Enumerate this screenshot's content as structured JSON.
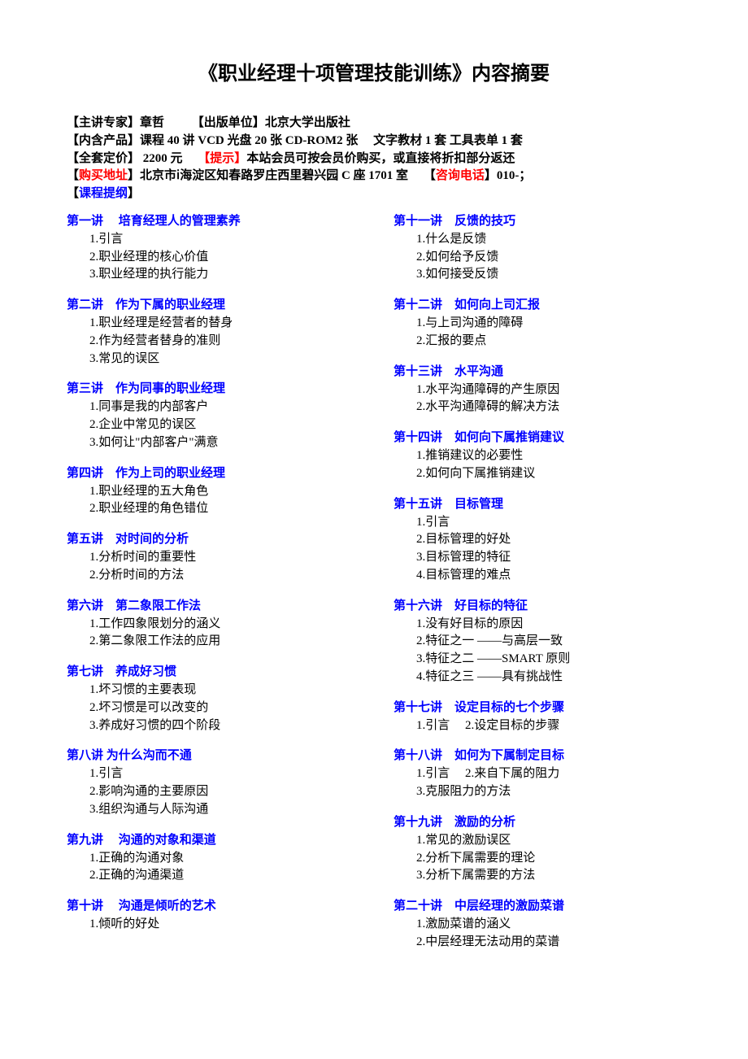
{
  "title": "《职业经理十项管理技能训练》内容摘要",
  "meta": {
    "line1_label1": "【主讲专家】",
    "line1_val1": "章哲",
    "line1_label2": "【出版单位】",
    "line1_val2": "北京大学出版社",
    "line2_label": "【内含产品】",
    "line2_val": "课程 40 讲  VCD 光盘 20 张  CD-ROM2 张　  文字教材 1 套  工具表单 1 套",
    "line3_label": "【全套定价】",
    "line3_val": "  2200 元",
    "line3_red": "【提示】",
    "line3_after": "本站会员可按会员价购买，或直接将折扣部分返还",
    "line4_blue1": "购买地址",
    "line4_val": "北京市ⅰ海淀区知春路罗庄西里碧兴园 C 座 1701 室",
    "line4_blue2": "咨询电话",
    "line4_after": "010-；",
    "line5": "课程提纲"
  },
  "left": [
    {
      "h": "第一讲　 培育经理人的管理素养",
      "items": [
        "1.引言",
        "2.职业经理的核心价值",
        "3.职业经理的执行能力"
      ]
    },
    {
      "h": "第二讲　作为下属的职业经理",
      "items": [
        "1.职业经理是经营者的替身",
        "2.作为经营者替身的准则",
        "3.常见的误区"
      ]
    },
    {
      "h": "第三讲　作为同事的职业经理",
      "items": [
        "1.同事是我的内部客户",
        "2.企业中常见的误区",
        "3.如何让\"内部客户\"满意"
      ]
    },
    {
      "h": "第四讲　作为上司的职业经理",
      "items": [
        "1.职业经理的五大角色",
        "2.职业经理的角色错位"
      ]
    },
    {
      "h": "第五讲　对时间的分析",
      "items": [
        "1.分析时间的重要性",
        "2.分析时间的方法"
      ]
    },
    {
      "h": "第六讲　第二象限工作法",
      "items": [
        "1.工作四象限划分的涵义",
        "2.第二象限工作法的应用"
      ]
    },
    {
      "h": "第七讲　养成好习惯",
      "items": [
        "1.坏习惯的主要表现",
        "2.坏习惯是可以改变的",
        "3.养成好习惯的四个阶段"
      ]
    },
    {
      "h": "第八讲  为什么沟而不通",
      "items": [
        "1.引言",
        "2.影响沟通的主要原因",
        "3.组织沟通与人际沟通"
      ]
    },
    {
      "h": "第九讲　  沟通的对象和渠道",
      "items": [
        "1.正确的沟通对象",
        "2.正确的沟通渠道"
      ]
    },
    {
      "h": "第十讲　  沟通是倾听的艺术",
      "items": [
        "1.倾听的好处"
      ]
    }
  ],
  "right": [
    {
      "h": "第十一讲　反馈的技巧",
      "items": [
        "1.什么是反馈",
        "2.如何给予反馈",
        "3.如何接受反馈"
      ]
    },
    {
      "h": "第十二讲　如何向上司汇报",
      "items": [
        "1.与上司沟通的障碍",
        "2.汇报的要点"
      ]
    },
    {
      "h": "第十三讲　水平沟通",
      "items": [
        "1.水平沟通障碍的产生原因",
        "2.水平沟通障碍的解决方法"
      ]
    },
    {
      "h": "第十四讲　如何向下属推销建议",
      "items": [
        "1.推销建议的必要性",
        "2.如何向下属推销建议"
      ]
    },
    {
      "h": "第十五讲　目标管理",
      "items": [
        "1.引言",
        "2.目标管理的好处",
        "3.目标管理的特征",
        "4.目标管理的难点"
      ]
    },
    {
      "h": "第十六讲　好目标的特征",
      "items": [
        "1.没有好目标的原因",
        "2.特征之一  ——与高层一致",
        "3.特征之二  ——SMART  原则",
        "4.特征之三  ——具有挑战性"
      ]
    },
    {
      "h": "第十七讲　设定目标的七个步骤",
      "items": [
        "1.引言　 2.设定目标的步骤"
      ]
    },
    {
      "h": "第十八讲　如何为下属制定目标",
      "items": [
        "1.引言　  2.来自下属的阻力",
        "3.克服阻力的方法"
      ]
    },
    {
      "h": "第十九讲　激励的分析",
      "items": [
        "1.常见的激励误区",
        "2.分析下属需要的理论",
        "3.分析下属需要的方法"
      ]
    },
    {
      "h": "第二十讲　中层经理的激励菜谱",
      "items": [
        "1.激励菜谱的涵义",
        "2.中层经理无法动用的菜谱"
      ]
    }
  ]
}
